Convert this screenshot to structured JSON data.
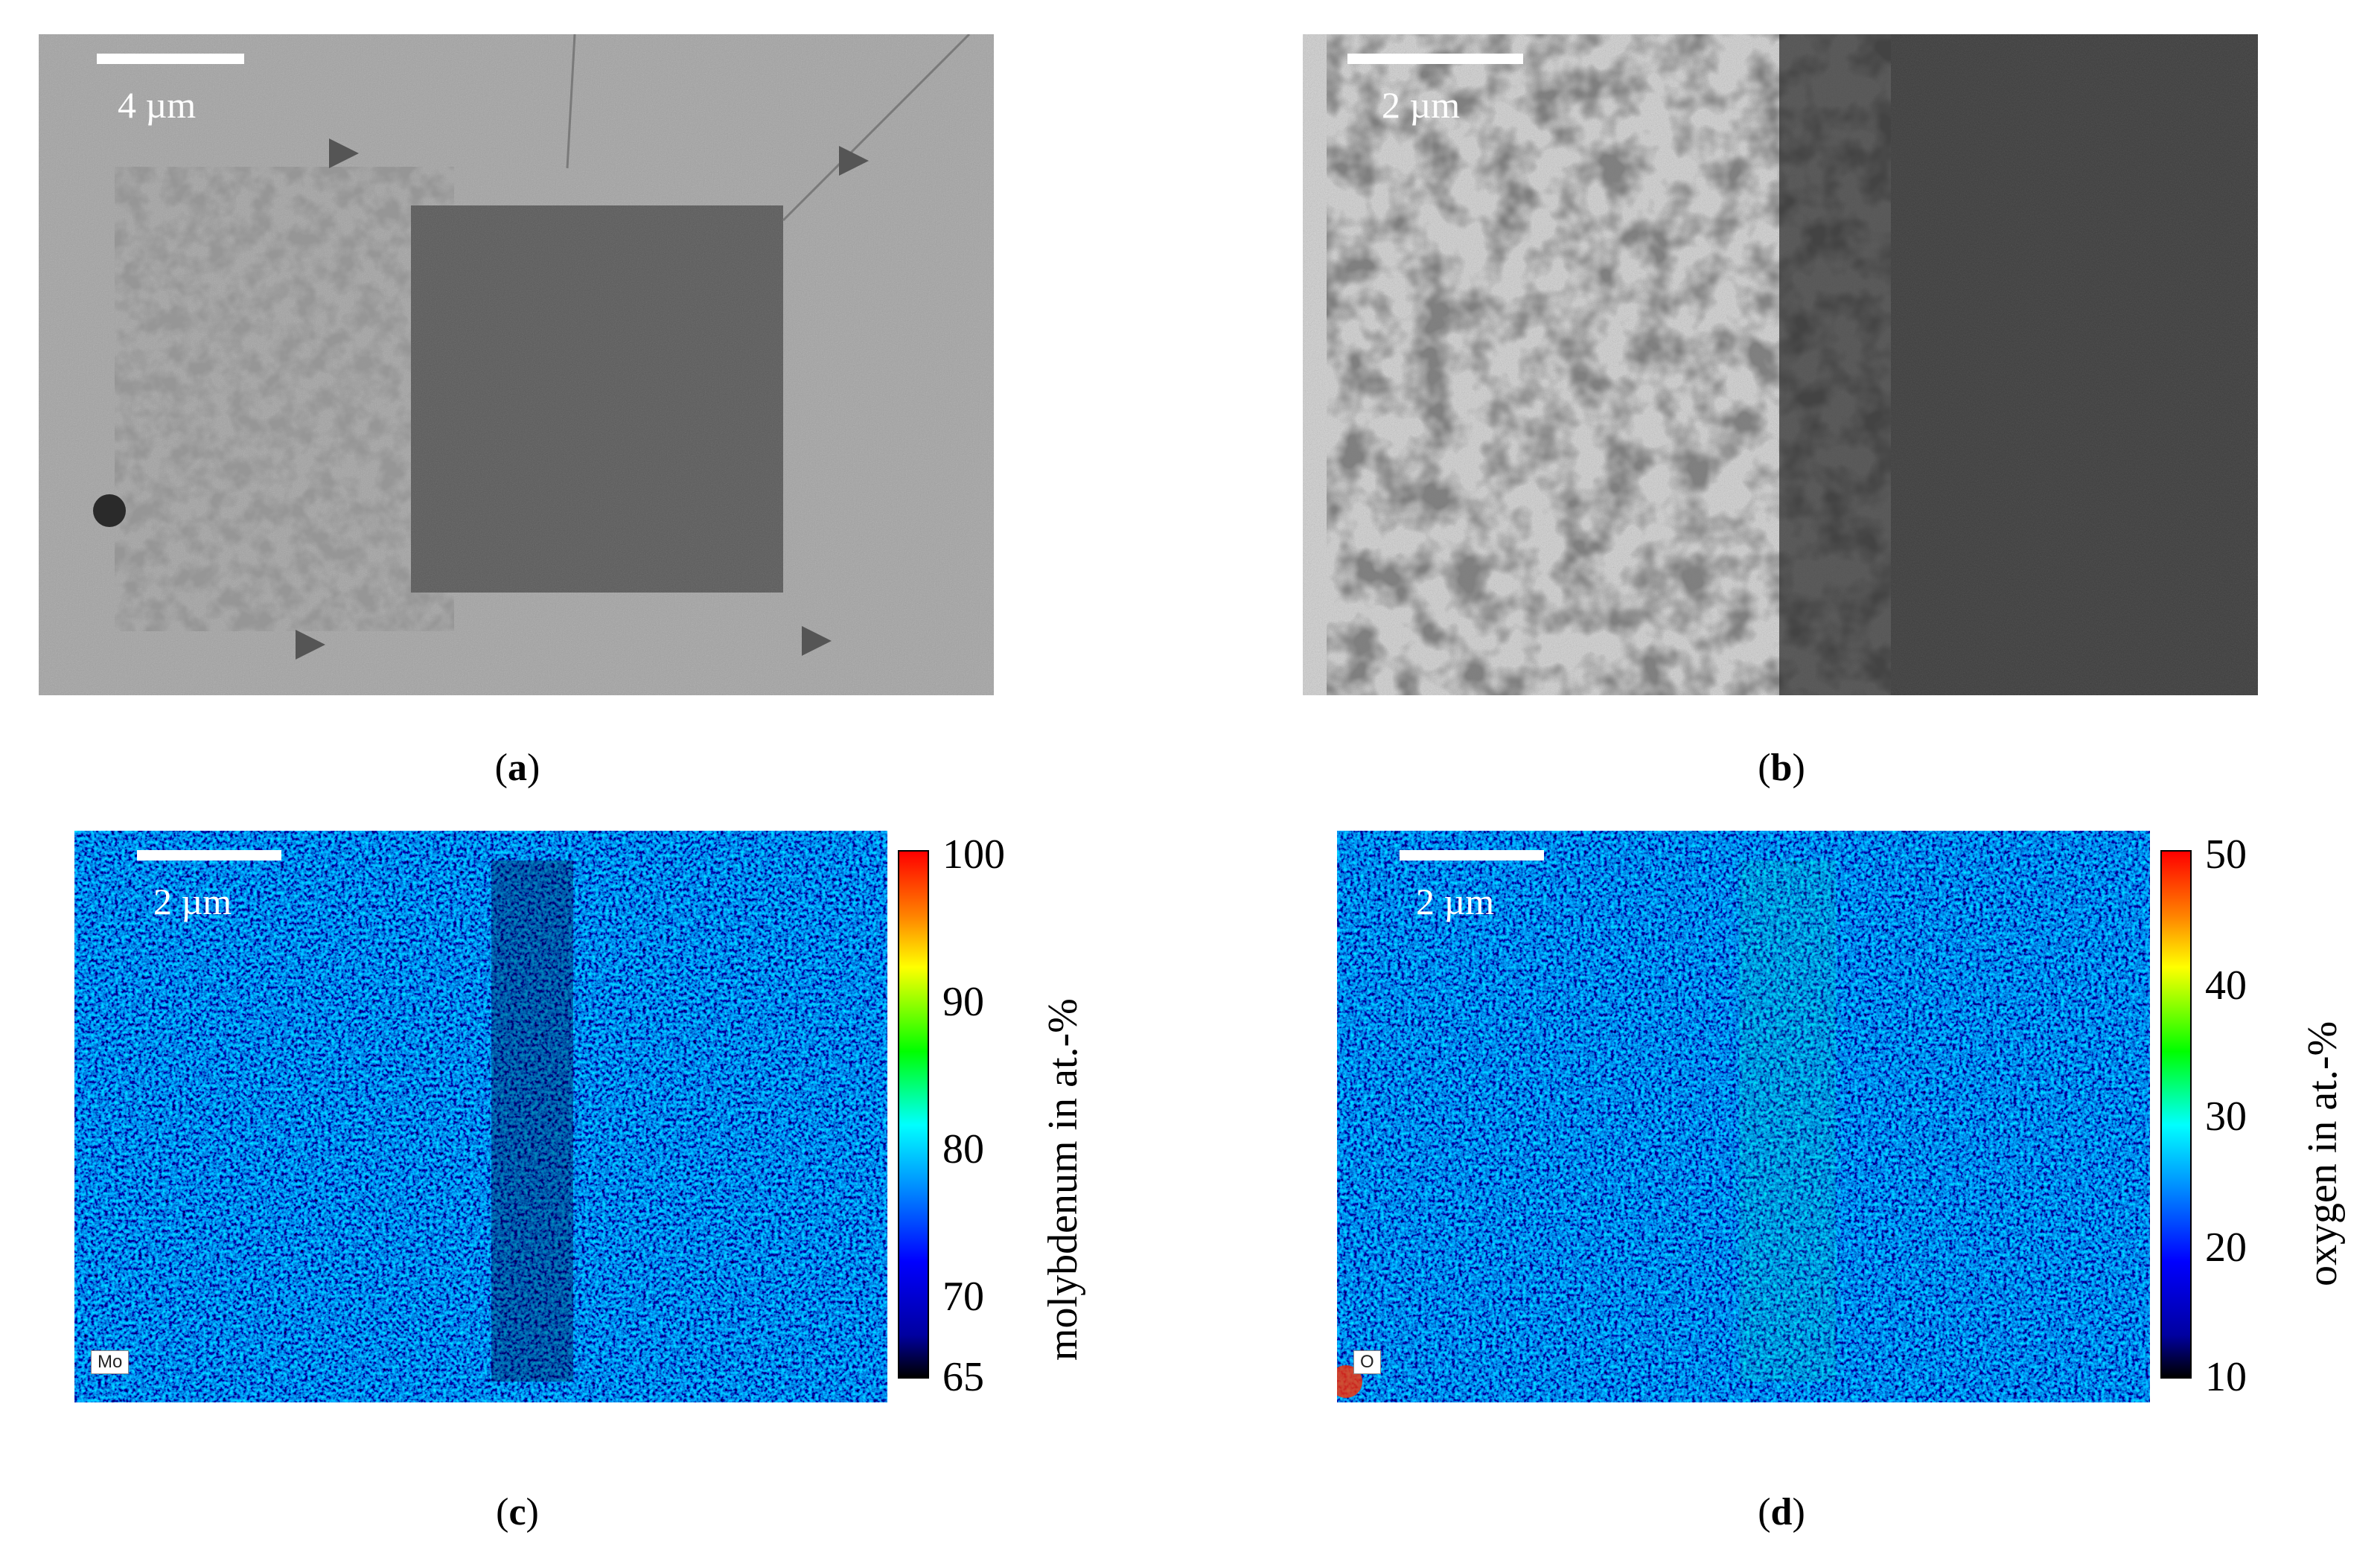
{
  "panels": [
    {
      "id": "a",
      "type": "sem-image",
      "scale_bar_label": "4 µm",
      "caption": "a"
    },
    {
      "id": "b",
      "type": "sem-image",
      "scale_bar_label": "2 µm",
      "caption": "b"
    },
    {
      "id": "c",
      "type": "edx-map",
      "scale_bar_label": "2 µm",
      "caption": "c",
      "element_label": "Mo",
      "colorbar": {
        "title": "molybdenum in at.-%",
        "ticks": [
          "100",
          "90",
          "80",
          "70",
          "65"
        ]
      }
    },
    {
      "id": "d",
      "type": "edx-map",
      "scale_bar_label": "2 µm",
      "caption": "d",
      "element_label": "O",
      "colorbar": {
        "title": "oxygen in at.-%",
        "ticks": [
          "50",
          "40",
          "30",
          "20",
          "10"
        ]
      }
    }
  ],
  "colors": {
    "colormap": [
      "#000000",
      "#0000a0",
      "#0000ff",
      "#00a0ff",
      "#00ffff",
      "#00ff00",
      "#ffff00",
      "#ff8000",
      "#ff0000"
    ],
    "sem_background": "#a0a0a0"
  }
}
